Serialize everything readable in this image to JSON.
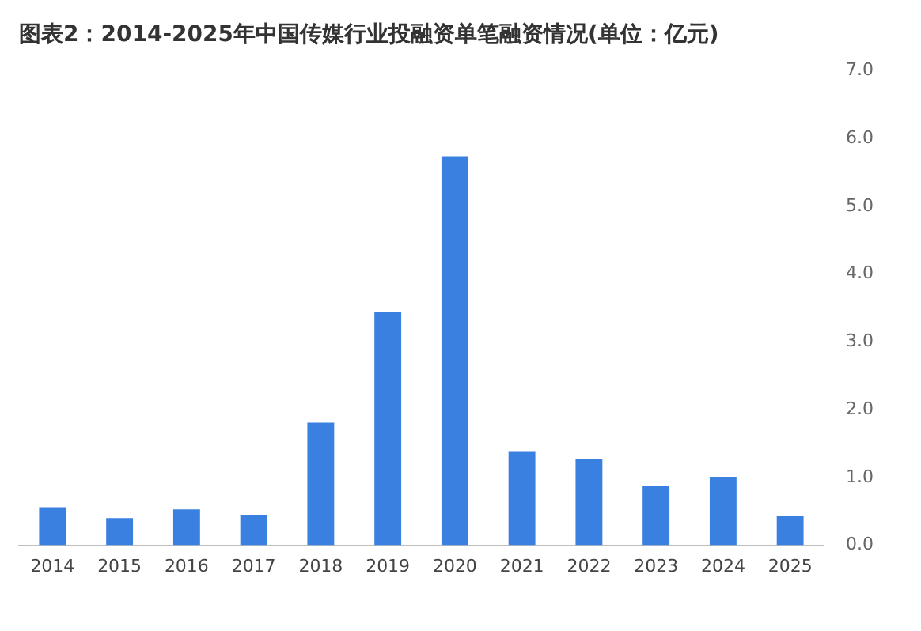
{
  "chart_data": {
    "type": "bar",
    "title": "图表2：2014-2025年中国传媒行业投融资单笔融资情况(单位：亿元)",
    "categories": [
      "2014",
      "2015",
      "2016",
      "2017",
      "2018",
      "2019",
      "2020",
      "2021",
      "2022",
      "2023",
      "2024",
      "2025"
    ],
    "values": [
      0.56,
      0.4,
      0.53,
      0.45,
      1.81,
      3.45,
      5.74,
      1.39,
      1.28,
      0.88,
      1.01,
      0.43
    ],
    "color": "#3a80e0",
    "ylim": [
      0,
      7
    ],
    "yticks": [
      {
        "value": 0,
        "label": "0.0"
      },
      {
        "value": 1,
        "label": "1.0"
      },
      {
        "value": 2,
        "label": "2.0"
      },
      {
        "value": 3,
        "label": "3.0"
      },
      {
        "value": 4,
        "label": "4.0"
      },
      {
        "value": 5,
        "label": "5.0"
      },
      {
        "value": 6,
        "label": "6.0"
      },
      {
        "value": 7,
        "label": "7.0"
      }
    ],
    "grid": false,
    "legend": false
  }
}
